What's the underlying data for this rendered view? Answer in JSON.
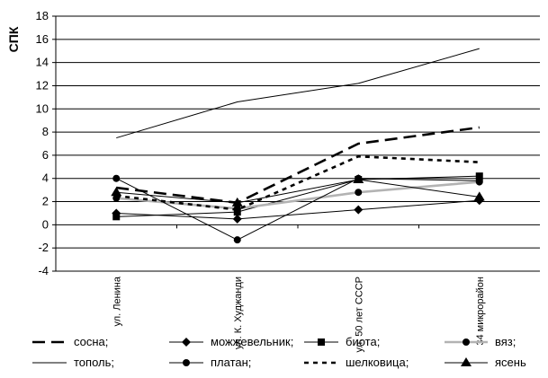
{
  "chart_data": {
    "type": "line",
    "ylabel": "СПК",
    "xlabel": "",
    "title": "",
    "ylim": [
      -4,
      18
    ],
    "yticks": [
      -4,
      -2,
      0,
      2,
      4,
      6,
      8,
      10,
      12,
      14,
      16,
      18
    ],
    "grid": "horizontal",
    "legend_position": "bottom",
    "categories": [
      "ул. Ленина",
      "ул. К. Худжанди",
      "ул. 50 лет СССР",
      "34 микрорайон"
    ],
    "series": [
      {
        "name": "сосна;",
        "style": "long-dash",
        "color": "#000000",
        "marker": "none",
        "values": [
          3.2,
          1.9,
          7.0,
          8.4
        ]
      },
      {
        "name": "можжевельник;",
        "style": "solid",
        "color": "#000000",
        "marker": "diamond",
        "values": [
          1.0,
          0.5,
          1.3,
          2.1
        ]
      },
      {
        "name": "биота;",
        "style": "solid",
        "color": "#000000",
        "marker": "square",
        "values": [
          0.7,
          1.1,
          3.9,
          4.2
        ]
      },
      {
        "name": "вяз;",
        "style": "solid-thick",
        "color": "#b3b3b3",
        "marker": "circle",
        "values": [
          2.3,
          1.4,
          2.8,
          3.7
        ]
      },
      {
        "name": "тополь;",
        "style": "solid",
        "color": "#000000",
        "marker": "none",
        "values": [
          7.5,
          10.6,
          12.2,
          15.2
        ]
      },
      {
        "name": "платан;",
        "style": "solid",
        "color": "#000000",
        "marker": "circle",
        "values": [
          4.0,
          -1.3,
          4.0,
          3.8
        ]
      },
      {
        "name": "шелковица;",
        "style": "dotted",
        "color": "#000000",
        "marker": "none",
        "values": [
          2.5,
          1.3,
          5.9,
          5.4
        ]
      },
      {
        "name": "ясень",
        "style": "solid",
        "color": "#000000",
        "marker": "triangle",
        "values": [
          2.8,
          1.9,
          3.9,
          2.4
        ]
      }
    ]
  }
}
